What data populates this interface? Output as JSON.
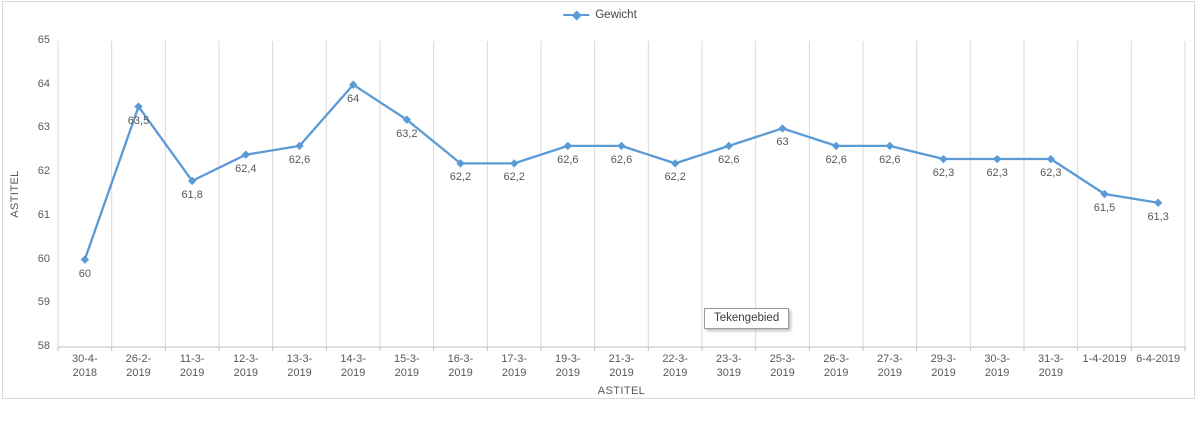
{
  "legend": {
    "label": "Gewicht"
  },
  "tooltip": {
    "text": "Tekengebied"
  },
  "axes": {
    "y_title": "ASTITEL",
    "x_title": "ASTITEL",
    "y_ticks": [
      "65",
      "64",
      "63",
      "62",
      "61",
      "60",
      "59",
      "58"
    ]
  },
  "colors": {
    "series": "#5b9bd5",
    "gridline": "#d9d9d9",
    "axis_line": "#bfbfbf",
    "text": "#595959"
  },
  "chart_data": {
    "type": "line",
    "title": "",
    "xlabel": "ASTITEL",
    "ylabel": "ASTITEL",
    "ylim": [
      58,
      65
    ],
    "y_tick_step": 1,
    "grid": "vertical-major-only",
    "legend_position": "top-center",
    "marker": "diamond",
    "categories": [
      "30-4-2018",
      "26-2-2019",
      "11-3-2019",
      "12-3-2019",
      "13-3-2019",
      "14-3-2019",
      "15-3-2019",
      "16-3-2019",
      "17-3-2019",
      "19-3-2019",
      "21-3-2019",
      "22-3-2019",
      "23-3-3019",
      "25-3-2019",
      "26-3-2019",
      "27-3-2019",
      "29-3-2019",
      "30-3-2019",
      "31-3-2019",
      "1-4-2019",
      "6-4-2019"
    ],
    "tick_label_lines": [
      [
        "30-4-",
        "2018"
      ],
      [
        "26-2-",
        "2019"
      ],
      [
        "11-3-",
        "2019"
      ],
      [
        "12-3-",
        "2019"
      ],
      [
        "13-3-",
        "2019"
      ],
      [
        "14-3-",
        "2019"
      ],
      [
        "15-3-",
        "2019"
      ],
      [
        "16-3-",
        "2019"
      ],
      [
        "17-3-",
        "2019"
      ],
      [
        "19-3-",
        "2019"
      ],
      [
        "21-3-",
        "2019"
      ],
      [
        "22-3-",
        "2019"
      ],
      [
        "23-3-",
        "3019"
      ],
      [
        "25-3-",
        "2019"
      ],
      [
        "26-3-",
        "2019"
      ],
      [
        "27-3-",
        "2019"
      ],
      [
        "29-3-",
        "2019"
      ],
      [
        "30-3-",
        "2019"
      ],
      [
        "31-3-",
        "2019"
      ],
      [
        "1-4-2019"
      ],
      [
        "6-4-2019"
      ]
    ],
    "series": [
      {
        "name": "Gewicht",
        "values": [
          60,
          63.5,
          61.8,
          62.4,
          62.6,
          64,
          63.2,
          62.2,
          62.2,
          62.6,
          62.6,
          62.2,
          62.6,
          63,
          62.6,
          62.6,
          62.3,
          62.3,
          62.3,
          61.5,
          61.3
        ],
        "data_labels": [
          "60",
          "63,5",
          "61,8",
          "62,4",
          "62,6",
          "64",
          "63,2",
          "62,2",
          "62,2",
          "62,6",
          "62,6",
          "62,2",
          "62,6",
          "63",
          "62,6",
          "62,6",
          "62,3",
          "62,3",
          "62,3",
          "61,5",
          "61,3"
        ]
      }
    ]
  }
}
